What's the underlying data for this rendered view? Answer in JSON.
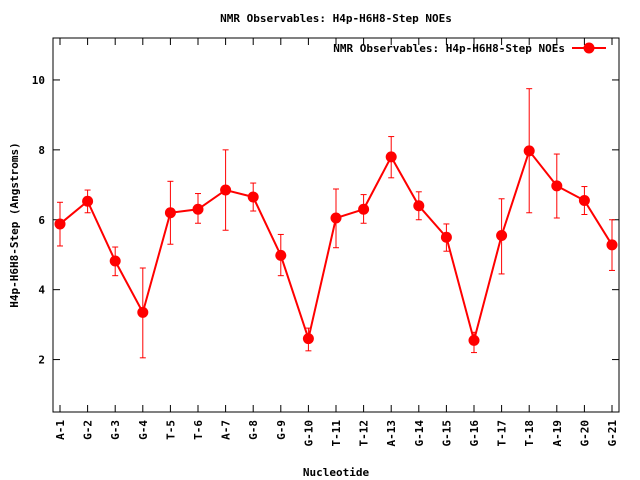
{
  "chart_data": {
    "type": "line",
    "title": "NMR Observables: H4p-H6H8-Step NOEs",
    "xlabel": "Nucleotide",
    "ylabel": "H4p-H6H8-Step (Angstroms)",
    "ylim": [
      0.5,
      11.2
    ],
    "yticks": [
      2,
      4,
      6,
      8,
      10
    ],
    "grid": false,
    "legend_position": "top-right",
    "categories": [
      "A-1",
      "G-2",
      "G-3",
      "G-4",
      "T-5",
      "T-6",
      "A-7",
      "G-8",
      "G-9",
      "G-10",
      "T-11",
      "T-12",
      "A-13",
      "G-14",
      "G-15",
      "G-16",
      "T-17",
      "T-18",
      "A-19",
      "G-20",
      "G-21"
    ],
    "series": [
      {
        "name": "NMR Observables: H4p-H6H8-Step NOEs",
        "color": "#ff0000",
        "values": [
          5.88,
          6.53,
          4.82,
          3.35,
          6.2,
          6.3,
          6.85,
          6.65,
          4.98,
          2.6,
          6.05,
          6.3,
          7.8,
          6.4,
          5.5,
          2.55,
          5.55,
          7.97,
          6.97,
          6.55,
          5.28
        ],
        "error_low": [
          5.25,
          6.2,
          4.4,
          2.05,
          5.3,
          5.9,
          5.7,
          6.25,
          4.4,
          2.25,
          5.2,
          5.9,
          7.2,
          6.0,
          5.1,
          2.2,
          4.45,
          6.2,
          6.05,
          6.15,
          4.55
        ],
        "error_high": [
          6.5,
          6.85,
          5.22,
          4.62,
          7.1,
          6.75,
          8.0,
          7.05,
          5.58,
          2.9,
          6.88,
          6.72,
          8.38,
          6.8,
          5.88,
          2.78,
          6.6,
          9.75,
          7.88,
          6.95,
          6.0
        ]
      }
    ]
  }
}
